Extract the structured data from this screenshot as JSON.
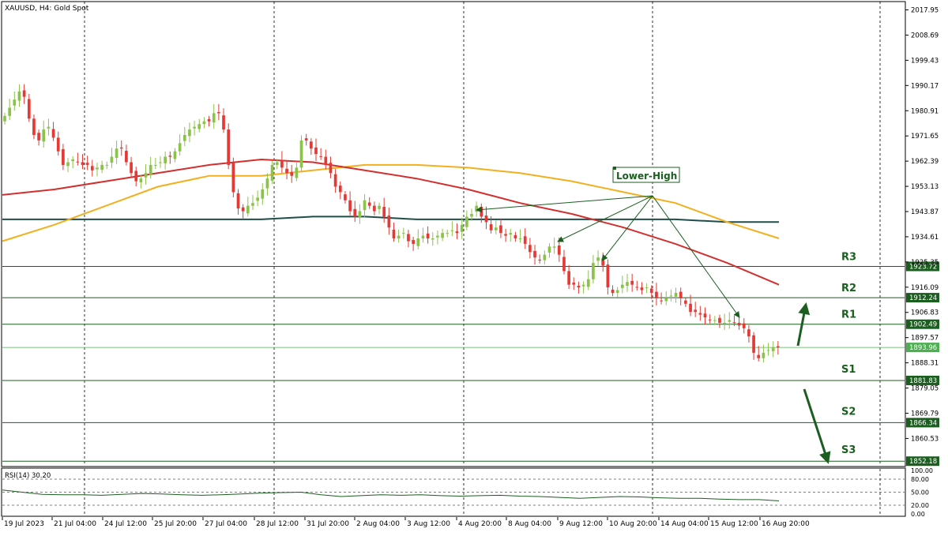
{
  "chart_data": {
    "type": "candlestick",
    "title": "XAUUSD, H4:  Gold Spot",
    "price_axis": {
      "ticks": [
        2017.95,
        2008.69,
        1999.43,
        1990.17,
        1980.91,
        1971.65,
        1962.39,
        1953.13,
        1943.87,
        1934.61,
        1925.35,
        1916.09,
        1906.83,
        1897.57,
        1888.31,
        1879.05,
        1869.79,
        1860.53
      ],
      "range": [
        1850.5,
        2021.0
      ]
    },
    "time_axis": {
      "labels": [
        "19 Jul 2023",
        "21 Jul 04:00",
        "24 Jul 12:00",
        "25 Jul 20:00",
        "27 Jul 04:00",
        "28 Jul 12:00",
        "31 Jul 20:00",
        "2 Aug 04:00",
        "3 Aug 12:00",
        "4 Aug 20:00",
        "8 Aug 04:00",
        "9 Aug 12:00",
        "10 Aug 20:00",
        "14 Aug 04:00",
        "15 Aug 12:00",
        "16 Aug 20:00"
      ],
      "bars_total": 160
    },
    "levels": [
      {
        "name": "R3",
        "value": 1923.72
      },
      {
        "name": "R2",
        "value": 1912.24
      },
      {
        "name": "R1",
        "value": 1902.49
      },
      {
        "name": "S1",
        "value": 1881.83
      },
      {
        "name": "S2",
        "value": 1866.34
      },
      {
        "name": "S3",
        "value": 1852.18
      }
    ],
    "current_price": 1893.96,
    "annotation": "Lower-High",
    "candles_close": [
      1979,
      1982,
      1985,
      1988,
      1986,
      1978,
      1972,
      1970,
      1974,
      1975,
      1971,
      1966,
      1961,
      1962,
      1963,
      1962,
      1961,
      1961,
      1959,
      1960,
      1961,
      1961,
      1964,
      1967,
      1967,
      1962,
      1958,
      1955,
      1956,
      1958,
      1961,
      1961,
      1962,
      1964,
      1964,
      1966,
      1969,
      1972,
      1974,
      1975,
      1976,
      1977,
      1977,
      1980,
      1980,
      1974,
      1961,
      1951,
      1945,
      1944,
      1946,
      1947,
      1949,
      1952,
      1956,
      1961,
      1962,
      1960,
      1958,
      1957,
      1960,
      1970,
      1970,
      1967,
      1965,
      1964,
      1961,
      1958,
      1953,
      1951,
      1948,
      1944,
      1942,
      1944,
      1948,
      1946,
      1944,
      1946,
      1942,
      1938,
      1934,
      1935,
      1936,
      1933,
      1932,
      1934,
      1935,
      1934,
      1934,
      1935,
      1936,
      1936,
      1937,
      1936,
      1939,
      1942,
      1943,
      1946,
      1942,
      1940,
      1937,
      1938,
      1936,
      1935,
      1936,
      1934,
      1934,
      1932,
      1929,
      1927,
      1926,
      1928,
      1931,
      1931,
      1928,
      1922,
      1917,
      1917,
      1916,
      1917,
      1919,
      1925,
      1927,
      1924,
      1916,
      1914,
      1915,
      1917,
      1918,
      1917,
      1916,
      1915,
      1916,
      1914,
      1912,
      1911,
      1912,
      1913,
      1914,
      1912,
      1910,
      1907,
      1907,
      1906,
      1905,
      1904,
      1904,
      1903,
      1903,
      1904,
      1903,
      1902,
      1901,
      1898,
      1892,
      1890,
      1892,
      1893,
      1894,
      1894
    ],
    "sma_fast": [
      1950,
      1952,
      1955,
      1958,
      1961,
      1963,
      1962,
      1959,
      1956,
      1952,
      1947,
      1943,
      1938,
      1932,
      1925,
      1917
    ],
    "sma_mid": [
      1933,
      1939,
      1946,
      1953,
      1957,
      1957,
      1959,
      1961,
      1961,
      1960,
      1958,
      1955,
      1951,
      1947,
      1940,
      1934
    ],
    "sma_slow": [
      1941,
      1941,
      1941,
      1941,
      1941,
      1941,
      1942,
      1942,
      1941,
      1941,
      1941,
      1941,
      1941,
      1941,
      1940,
      1940
    ],
    "rsi": {
      "label": "RSI(14) 30.20",
      "ticks": [
        100.0,
        80.0,
        50.0,
        20.0,
        0.0
      ],
      "levels": [
        30,
        70
      ],
      "values": [
        55,
        50,
        45,
        44,
        44,
        43,
        45,
        47,
        46,
        44,
        43,
        44,
        46,
        48,
        49,
        50,
        44,
        40,
        42,
        44,
        43,
        44,
        42,
        41,
        42,
        43,
        41,
        40,
        38,
        36,
        38,
        40,
        39,
        37,
        36,
        36,
        34,
        33,
        33,
        30
      ]
    }
  }
}
